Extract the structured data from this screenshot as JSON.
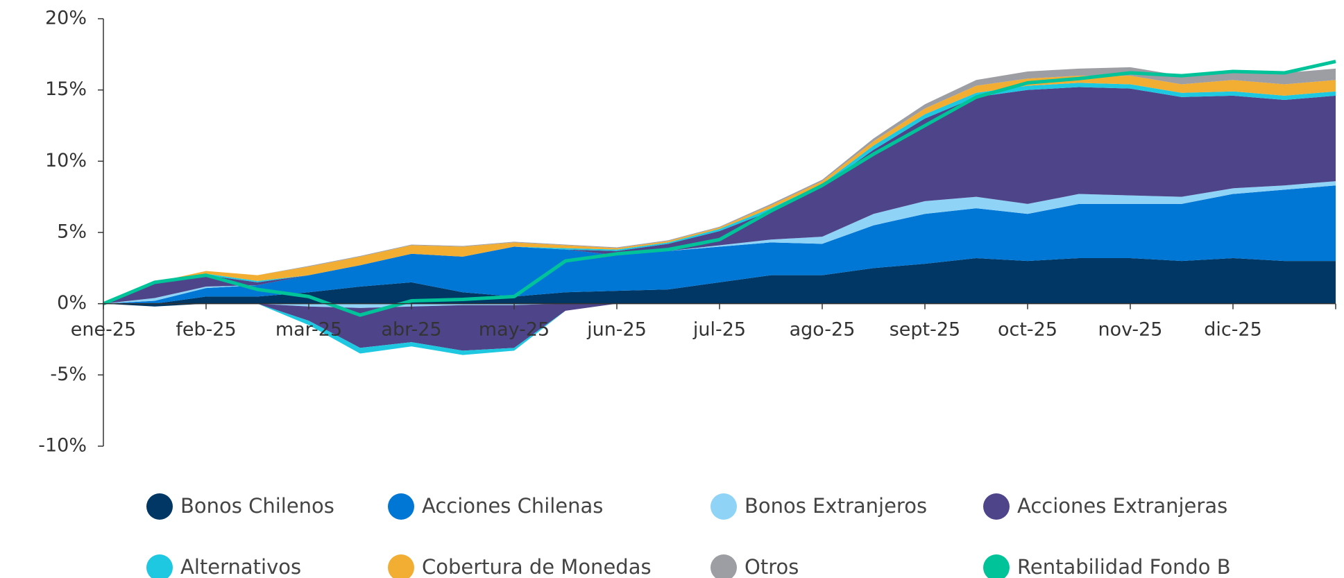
{
  "chart_data": {
    "type": "area",
    "categories": [
      "ene-25",
      null,
      "feb-25",
      null,
      "mar-25",
      null,
      "abr-25",
      null,
      "may-25",
      null,
      "jun-25",
      null,
      "jul-25",
      null,
      "ago-25",
      null,
      "sept-25",
      null,
      "oct-25",
      null,
      "nov-25",
      null,
      "dic-25",
      null,
      null
    ],
    "ylim": [
      -10,
      20
    ],
    "yticks": [
      {
        "value": -10,
        "label": "-10%"
      },
      {
        "value": -5,
        "label": "-5%"
      },
      {
        "value": 0,
        "label": "0%"
      },
      {
        "value": 5,
        "label": "5%"
      },
      {
        "value": 10,
        "label": "10%"
      },
      {
        "value": 15,
        "label": "15%"
      },
      {
        "value": 20,
        "label": "20%"
      }
    ],
    "stacked": true,
    "series": [
      {
        "name": "Bonos Chilenos",
        "color": "#003764",
        "values": [
          0,
          -0.2,
          0.5,
          0.5,
          0.8,
          1.2,
          1.5,
          0.8,
          0.5,
          0.8,
          0.9,
          1.0,
          1.5,
          2.0,
          2.0,
          2.5,
          2.8,
          3.2,
          3.0,
          3.2,
          3.2,
          3.0,
          3.2,
          3.0,
          3.0
        ]
      },
      {
        "name": "Acciones Chilenas",
        "color": "#0077d4",
        "values": [
          0,
          0.2,
          0.6,
          0.8,
          1.2,
          1.5,
          2.0,
          2.5,
          3.5,
          3.0,
          2.5,
          2.7,
          2.5,
          2.3,
          2.2,
          3.0,
          3.5,
          3.5,
          3.3,
          3.8,
          3.8,
          4.0,
          4.5,
          5.0,
          5.3
        ]
      },
      {
        "name": "Bonos Extranjeros",
        "color": "#8fd3f7",
        "values": [
          0,
          0.2,
          0.1,
          0.0,
          -0.2,
          -0.3,
          -0.2,
          -0.1,
          -0.1,
          0.0,
          0.0,
          0.0,
          0.1,
          0.2,
          0.5,
          0.8,
          0.9,
          0.8,
          0.7,
          0.7,
          0.6,
          0.5,
          0.4,
          0.3,
          0.3
        ]
      },
      {
        "name": "Acciones Extranjeras",
        "color": "#4e4489",
        "values": [
          0,
          1.0,
          0.8,
          0.2,
          -1.0,
          -2.8,
          -2.5,
          -3.2,
          -3.0,
          -0.5,
          0.3,
          0.5,
          1.0,
          2.0,
          3.5,
          4.5,
          5.8,
          7.0,
          8.0,
          7.5,
          7.5,
          7.0,
          6.5,
          6.0,
          6.0
        ]
      },
      {
        "name": "Alternativos",
        "color": "#1ec8e0",
        "values": [
          0,
          0.05,
          0.1,
          0.1,
          -0.3,
          -0.4,
          -0.3,
          -0.3,
          -0.2,
          0.1,
          0.1,
          0.1,
          0.15,
          0.2,
          0.2,
          0.3,
          0.3,
          0.3,
          0.3,
          0.3,
          0.3,
          0.3,
          0.3,
          0.3,
          0.3
        ]
      },
      {
        "name": "Cobertura de Monedas",
        "color": "#f2ad33",
        "values": [
          0,
          0.05,
          0.2,
          0.4,
          0.6,
          0.6,
          0.6,
          0.7,
          0.3,
          0.2,
          0.1,
          0.1,
          0.1,
          0.2,
          0.2,
          0.3,
          0.4,
          0.5,
          0.5,
          0.5,
          0.6,
          0.6,
          0.8,
          0.8,
          0.8
        ]
      },
      {
        "name": "Otros",
        "color": "#9d9ea3",
        "values": [
          0,
          0,
          0,
          0,
          0.05,
          0.05,
          0.05,
          0.05,
          0.05,
          0.05,
          0.05,
          0.05,
          0.05,
          0.1,
          0.1,
          0.2,
          0.3,
          0.4,
          0.5,
          0.5,
          0.6,
          0.6,
          0.7,
          0.8,
          0.8
        ]
      },
      {
        "name": "Rentabilidad Fondo B",
        "color": "#00c39a",
        "type": "line",
        "values": [
          0,
          1.5,
          2.0,
          1.0,
          0.5,
          -0.8,
          0.2,
          0.3,
          0.5,
          3.0,
          3.5,
          3.8,
          4.5,
          6.5,
          8.3,
          10.5,
          12.5,
          14.5,
          15.5,
          15.8,
          16.2,
          16.0,
          16.3,
          16.2,
          17.0
        ]
      }
    ]
  }
}
